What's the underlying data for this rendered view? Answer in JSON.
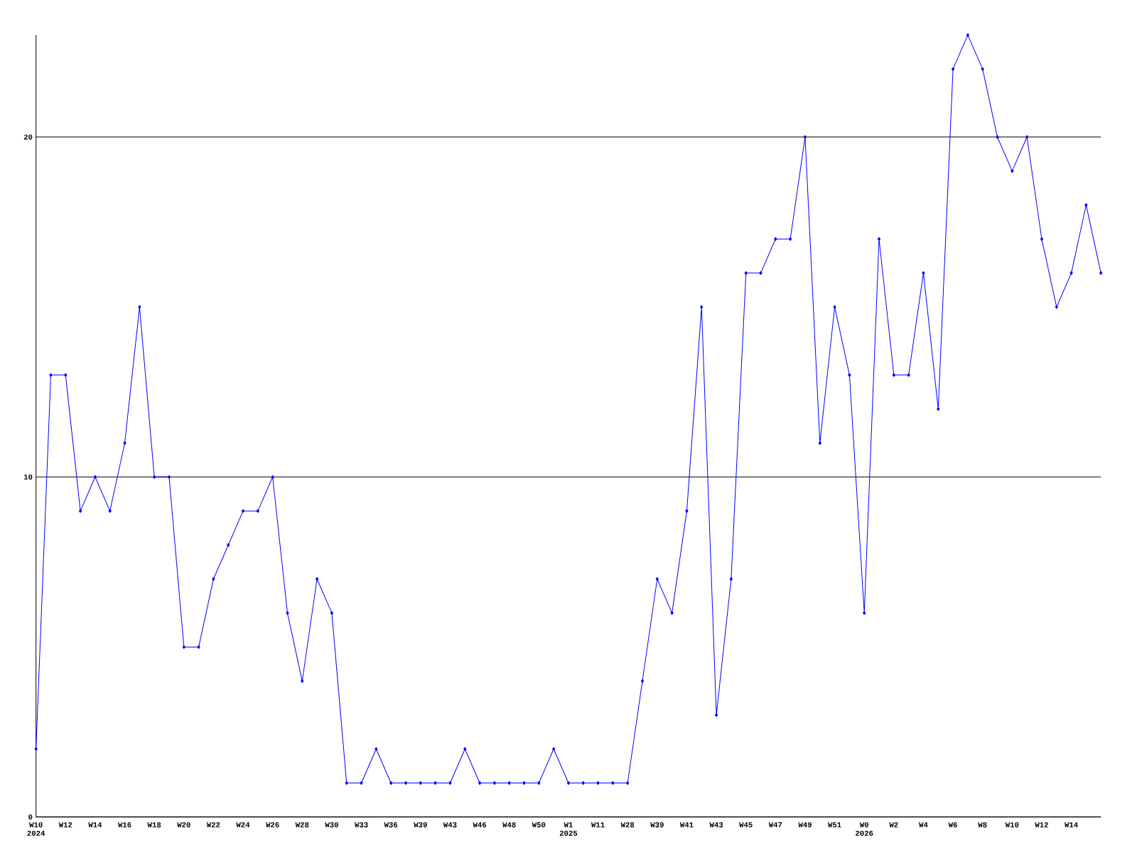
{
  "chart_data": {
    "type": "line",
    "categories": [
      "W10 2024",
      null,
      "W12",
      null,
      "W14",
      null,
      "W16",
      null,
      "W18",
      null,
      "W20",
      null,
      "W22",
      null,
      "W24",
      null,
      "W26",
      null,
      "W28",
      null,
      "W30",
      null,
      "W33",
      null,
      "W36",
      null,
      "W39",
      null,
      "W43",
      null,
      "W46",
      null,
      "W48",
      null,
      "W50",
      null,
      "W1 2025",
      null,
      "W11",
      null,
      "W28",
      null,
      "W39",
      null,
      "W41",
      null,
      "W43",
      null,
      "W45",
      null,
      "W47",
      null,
      "W49",
      null,
      "W51",
      null,
      "W0 2026",
      null,
      "W2",
      null,
      "W4",
      null,
      "W6",
      null,
      "W8",
      null,
      "W10",
      null,
      "W12",
      null,
      "W14",
      null,
      null
    ],
    "values": [
      2,
      13,
      13,
      9,
      10,
      9,
      11,
      15,
      10,
      10,
      5,
      5,
      7,
      8,
      9,
      9,
      10,
      6,
      4,
      7,
      6,
      1,
      1,
      2,
      1,
      1,
      1,
      1,
      1,
      2,
      1,
      1,
      1,
      1,
      1,
      2,
      1,
      1,
      1,
      1,
      1,
      4,
      7,
      6,
      9,
      15,
      3,
      7,
      16,
      16,
      17,
      17,
      20,
      11,
      15,
      13,
      6,
      17,
      13,
      13,
      16,
      12,
      22,
      23,
      22,
      20,
      19,
      20,
      17,
      15,
      16,
      18,
      16
    ],
    "color": "#0000ff",
    "marker": "diamond",
    "ylim": [
      0,
      23
    ],
    "yticks": [
      0,
      10,
      20
    ],
    "grid": "y"
  }
}
